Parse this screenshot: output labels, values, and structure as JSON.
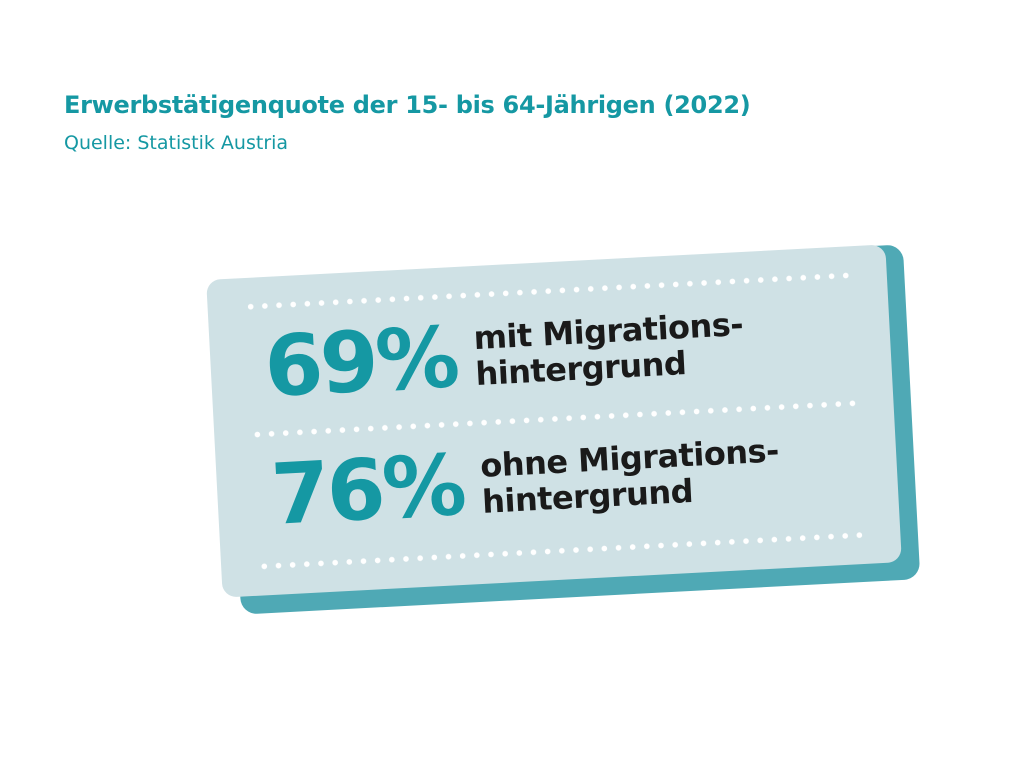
{
  "header": {
    "title": "Erwerbstätigenquote der 15- bis 64-Jährigen (2022)",
    "source": "Quelle: Statistik Austria"
  },
  "stats": [
    {
      "value": "69%",
      "label_line1": "mit Migrations-",
      "label_line2": "hintergrund"
    },
    {
      "value": "76%",
      "label_line1": "ohne Migrations-",
      "label_line2": "hintergrund"
    }
  ],
  "colors": {
    "accent": "#1598a3",
    "card_background": "#cfe1e5",
    "card_shadow": "#4fa9b5",
    "text_dark": "#1a1a1a",
    "page_background": "#ffffff"
  }
}
